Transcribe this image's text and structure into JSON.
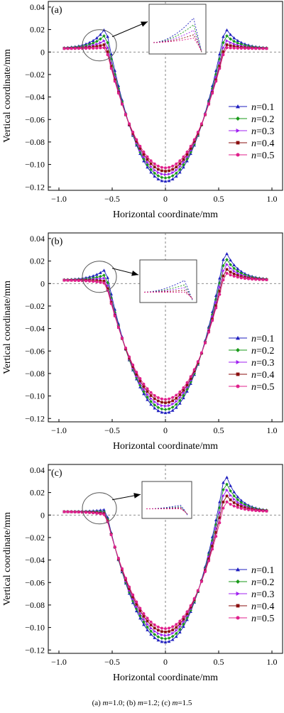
{
  "caption": {
    "parts": [
      {
        "t": "(a) ",
        "i": false
      },
      {
        "t": "m",
        "i": true
      },
      {
        "t": "=1.0; (b) ",
        "i": false
      },
      {
        "t": "m",
        "i": true
      },
      {
        "t": "=1.2; (c) ",
        "i": false
      },
      {
        "t": "m",
        "i": true
      },
      {
        "t": "=1.5",
        "i": false
      }
    ]
  },
  "chart_data": [
    {
      "type": "line",
      "panel_label": "(a)",
      "xlabel": "Horizontal coordinate/mm",
      "ylabel": "Vertical coordinate/mm",
      "xlim": [
        -1.1,
        1.1
      ],
      "ylim": [
        -0.123,
        0.045
      ],
      "xticks": [
        -1.0,
        -0.5,
        0,
        0.5,
        1.0
      ],
      "xtick_labels": [
        "−1.0",
        "−0.5",
        "0",
        "0.5",
        "1.0"
      ],
      "yticks": [
        0.04,
        0.02,
        0,
        -0.02,
        -0.04,
        -0.06,
        -0.08,
        -0.1,
        -0.12
      ],
      "ytick_labels": [
        "0.04",
        "0.02",
        "0",
        "−0.02",
        "−0.04",
        "−0.06",
        "−0.08",
        "−0.10",
        "−0.12"
      ],
      "legend_position": "right",
      "reference_lines": [
        "y=0 dashed",
        "x=0 dashed"
      ],
      "inset": "magnified view of left peak region",
      "series": [
        {
          "name": "n=0.1",
          "color": "#1f1fbf",
          "marker": "triangle",
          "peak_left": 0.022,
          "peak_right": 0.022,
          "min": -0.115
        },
        {
          "name": "n=0.2",
          "color": "#1a9a1a",
          "marker": "diamond",
          "peak_left": 0.016,
          "peak_right": 0.016,
          "min": -0.112
        },
        {
          "name": "n=0.3",
          "color": "#a020f0",
          "marker": "triangle-right",
          "peak_left": 0.011,
          "peak_right": 0.011,
          "min": -0.109
        },
        {
          "name": "n=0.4",
          "color": "#8b1010",
          "marker": "star",
          "peak_left": 0.007,
          "peak_right": 0.007,
          "min": -0.106
        },
        {
          "name": "n=0.5",
          "color": "#e0208c",
          "marker": "circle",
          "peak_left": 0.004,
          "peak_right": 0.004,
          "min": -0.103
        }
      ]
    },
    {
      "type": "line",
      "panel_label": "(b)",
      "xlabel": "Horizontal coordinate/mm",
      "ylabel": "Vertical coordinate/mm",
      "xlim": [
        -1.1,
        1.1
      ],
      "ylim": [
        -0.123,
        0.045
      ],
      "xticks": [
        -1.0,
        -0.5,
        0,
        0.5,
        1.0
      ],
      "xtick_labels": [
        "−1.0",
        "−0.5",
        "0",
        "0.5",
        "1.0"
      ],
      "yticks": [
        0.04,
        0.02,
        0,
        -0.02,
        -0.04,
        -0.06,
        -0.08,
        -0.1,
        -0.12
      ],
      "ytick_labels": [
        "0.04",
        "0.02",
        "0",
        "−0.02",
        "−0.04",
        "−0.06",
        "−0.08",
        "−0.10",
        "−0.12"
      ],
      "legend_position": "right",
      "reference_lines": [
        "y=0 dashed",
        "x=0 dashed"
      ],
      "inset": "magnified view of left peak region",
      "series": [
        {
          "name": "n=0.1",
          "color": "#1f1fbf",
          "marker": "triangle",
          "peak_left": 0.013,
          "peak_right": 0.03,
          "min": -0.115
        },
        {
          "name": "n=0.2",
          "color": "#1a9a1a",
          "marker": "diamond",
          "peak_left": 0.008,
          "peak_right": 0.024,
          "min": -0.112
        },
        {
          "name": "n=0.3",
          "color": "#a020f0",
          "marker": "triangle-right",
          "peak_left": 0.005,
          "peak_right": 0.019,
          "min": -0.109
        },
        {
          "name": "n=0.4",
          "color": "#8b1010",
          "marker": "star",
          "peak_left": 0.002,
          "peak_right": 0.014,
          "min": -0.106
        },
        {
          "name": "n=0.5",
          "color": "#e0208c",
          "marker": "circle",
          "peak_left": 0.0,
          "peak_right": 0.01,
          "min": -0.103
        }
      ]
    },
    {
      "type": "line",
      "panel_label": "(c)",
      "xlabel": "Horizontal coordinate/mm",
      "ylabel": "Vertical coordinate/mm",
      "xlim": [
        -1.1,
        1.1
      ],
      "ylim": [
        -0.123,
        0.045
      ],
      "xticks": [
        -1.0,
        -0.5,
        0,
        0.5,
        1.0
      ],
      "xtick_labels": [
        "−1.0",
        "−0.5",
        "0",
        "0.5",
        "1.0"
      ],
      "yticks": [
        0.04,
        0.02,
        0,
        -0.02,
        -0.04,
        -0.06,
        -0.08,
        -0.1,
        -0.12
      ],
      "ytick_labels": [
        "0.04",
        "0.02",
        "0",
        "−0.02",
        "−0.04",
        "−0.06",
        "−0.08",
        "−0.10",
        "−0.12"
      ],
      "legend_position": "right",
      "reference_lines": [
        "y=0 dashed",
        "x=0 dashed"
      ],
      "inset": "magnified view of left peak region",
      "series": [
        {
          "name": "n=0.1",
          "color": "#1f1fbf",
          "marker": "triangle",
          "peak_left": 0.005,
          "peak_right": 0.038,
          "min": -0.113
        },
        {
          "name": "n=0.2",
          "color": "#1a9a1a",
          "marker": "diamond",
          "peak_left": 0.003,
          "peak_right": 0.031,
          "min": -0.11
        },
        {
          "name": "n=0.3",
          "color": "#a020f0",
          "marker": "triangle-right",
          "peak_left": 0.002,
          "peak_right": 0.025,
          "min": -0.107
        },
        {
          "name": "n=0.4",
          "color": "#8b1010",
          "marker": "star",
          "peak_left": 0.001,
          "peak_right": 0.019,
          "min": -0.104
        },
        {
          "name": "n=0.5",
          "color": "#e0208c",
          "marker": "circle",
          "peak_left": 0.0,
          "peak_right": 0.013,
          "min": -0.101
        }
      ]
    }
  ]
}
